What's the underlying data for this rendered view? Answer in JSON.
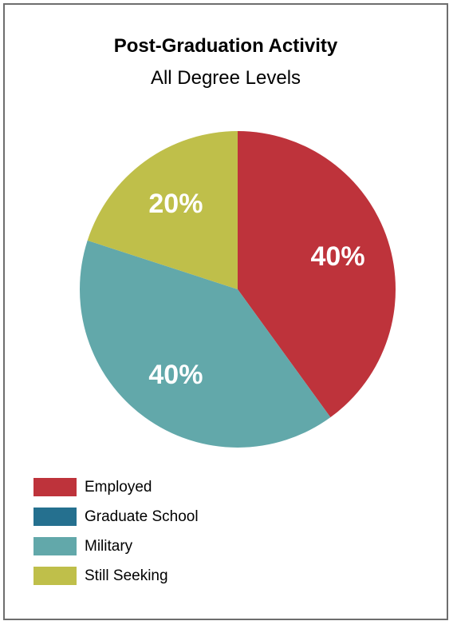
{
  "chart_data": {
    "type": "pie",
    "title": "Post-Graduation Activity",
    "subtitle": "All Degree Levels",
    "slices": [
      {
        "name": "Employed",
        "value": 40,
        "label": "40%",
        "color": "#be333b"
      },
      {
        "name": "Graduate School",
        "value": 0,
        "label": "",
        "color": "#25708f"
      },
      {
        "name": "Military",
        "value": 40,
        "label": "40%",
        "color": "#62a8aa"
      },
      {
        "name": "Still Seeking",
        "value": 20,
        "label": "20%",
        "color": "#bfbf4a"
      }
    ],
    "legend": {
      "placement": "bottom-left",
      "entries": [
        "Employed",
        "Graduate School",
        "Military",
        "Still Seeking"
      ]
    }
  }
}
